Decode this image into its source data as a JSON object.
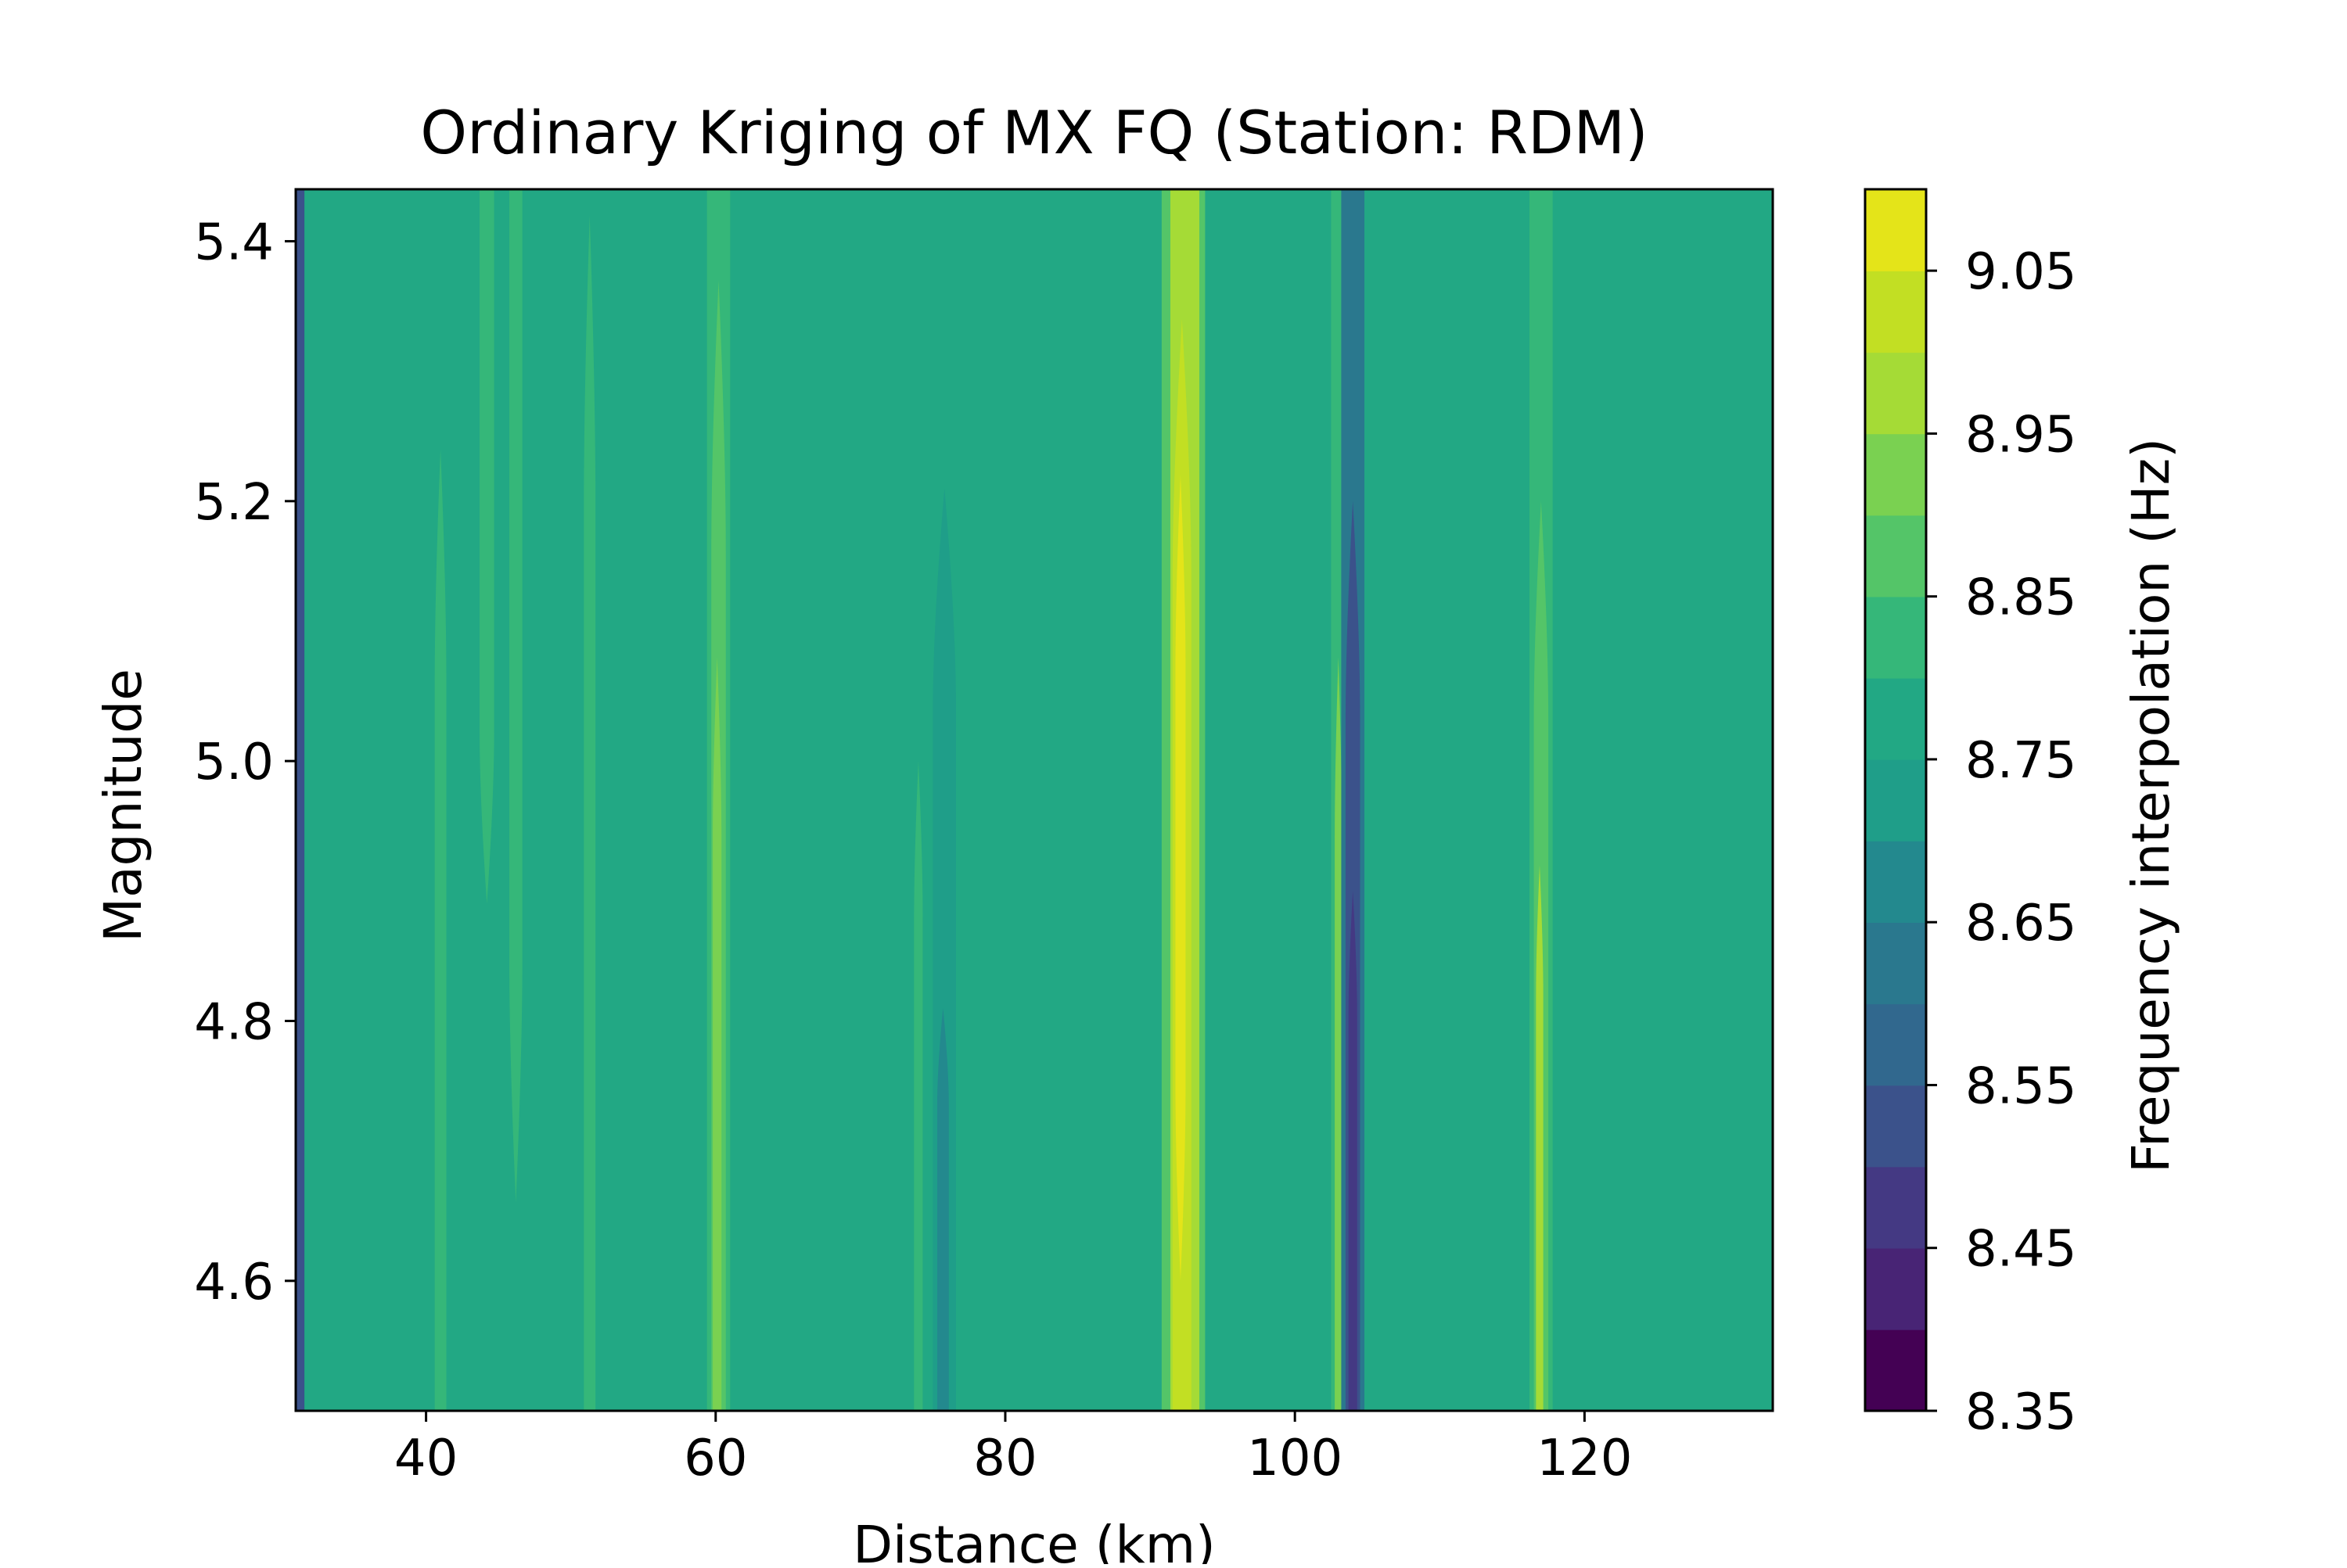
{
  "chart_data": {
    "type": "heatmap",
    "title": "Ordinary Kriging of MX FQ (Station: RDM)",
    "xlabel": "Distance (km)",
    "ylabel": "Magnitude",
    "xlim": [
      31,
      133
    ],
    "ylim": [
      4.5,
      5.44
    ],
    "x_ticks": [
      "40",
      "60",
      "80",
      "100",
      "120"
    ],
    "y_ticks": [
      "4.6",
      "4.8",
      "5.0",
      "5.2",
      "5.4"
    ],
    "grid": false,
    "colormap": "viridis",
    "colorbar": {
      "label": "Frequency interpolation (Hz)",
      "range": [
        8.35,
        9.1
      ],
      "levels": [
        8.35,
        8.4,
        8.45,
        8.5,
        8.55,
        8.6,
        8.65,
        8.7,
        8.75,
        8.8,
        8.85,
        8.9,
        8.95,
        9.0,
        9.05,
        9.1
      ],
      "colors": [
        "#440154",
        "#482475",
        "#443983",
        "#3b528b",
        "#31688e",
        "#2a788e",
        "#23898e",
        "#1f9e89",
        "#22a884",
        "#35b779",
        "#54c568",
        "#7ad151",
        "#a5db36",
        "#c2df23",
        "#e4e419"
      ],
      "ticks": [
        "8.35",
        "8.45",
        "8.55",
        "8.65",
        "8.75",
        "8.85",
        "8.95",
        "9.05"
      ]
    },
    "background_value": 8.77,
    "features": [
      {
        "x_center": 31.3,
        "width": 0.6,
        "ymin": 4.5,
        "ymax": 5.44,
        "value": 8.5
      },
      {
        "x_center": 41.0,
        "width": 0.8,
        "ymin": 4.5,
        "ymax": 5.24,
        "value": 8.82
      },
      {
        "x_center": 44.2,
        "width": 1.0,
        "ymin": 4.89,
        "ymax": 5.44,
        "value": 8.82
      },
      {
        "x_center": 46.2,
        "width": 0.9,
        "ymin": 4.66,
        "ymax": 5.44,
        "value": 8.82
      },
      {
        "x_center": 51.3,
        "width": 0.8,
        "ymin": 4.5,
        "ymax": 5.42,
        "value": 8.82
      },
      {
        "x_center": 60.2,
        "width": 1.6,
        "ymin": 4.5,
        "ymax": 5.44,
        "value": 8.82
      },
      {
        "x_center": 60.2,
        "width": 1.0,
        "ymin": 4.5,
        "ymax": 5.37,
        "value": 8.88
      },
      {
        "x_center": 60.1,
        "width": 0.6,
        "ymin": 4.5,
        "ymax": 5.08,
        "value": 8.92
      },
      {
        "x_center": 74.0,
        "width": 0.6,
        "ymin": 4.5,
        "ymax": 5.0,
        "value": 8.82
      },
      {
        "x_center": 75.8,
        "width": 1.6,
        "ymin": 4.5,
        "ymax": 5.21,
        "value": 8.72
      },
      {
        "x_center": 75.7,
        "width": 0.8,
        "ymin": 4.5,
        "ymax": 4.81,
        "value": 8.67
      },
      {
        "x_center": 92.3,
        "width": 3.0,
        "ymin": 4.5,
        "ymax": 5.44,
        "value": 8.88
      },
      {
        "x_center": 92.4,
        "width": 2.0,
        "ymin": 4.5,
        "ymax": 5.44,
        "value": 8.95
      },
      {
        "x_center": 92.2,
        "width": 1.3,
        "ymin": 4.5,
        "ymax": 5.34,
        "value": 9.0
      },
      {
        "x_center": 92.1,
        "width": 0.7,
        "ymin": 4.6,
        "ymax": 5.22,
        "value": 9.05
      },
      {
        "x_center": 103.0,
        "width": 1.0,
        "ymin": 4.5,
        "ymax": 5.44,
        "value": 8.82
      },
      {
        "x_center": 103.0,
        "width": 0.5,
        "ymin": 4.5,
        "ymax": 5.08,
        "value": 8.9
      },
      {
        "x_center": 104.0,
        "width": 1.6,
        "ymin": 4.5,
        "ymax": 5.44,
        "value": 8.6
      },
      {
        "x_center": 104.0,
        "width": 1.0,
        "ymin": 4.5,
        "ymax": 5.2,
        "value": 8.52
      },
      {
        "x_center": 104.0,
        "width": 0.6,
        "ymin": 4.5,
        "ymax": 4.9,
        "value": 8.45
      },
      {
        "x_center": 117.0,
        "width": 1.6,
        "ymin": 4.5,
        "ymax": 5.44,
        "value": 8.82
      },
      {
        "x_center": 117.0,
        "width": 1.0,
        "ymin": 4.5,
        "ymax": 5.2,
        "value": 8.88
      },
      {
        "x_center": 116.9,
        "width": 0.5,
        "ymin": 4.5,
        "ymax": 4.92,
        "value": 8.95
      }
    ]
  }
}
